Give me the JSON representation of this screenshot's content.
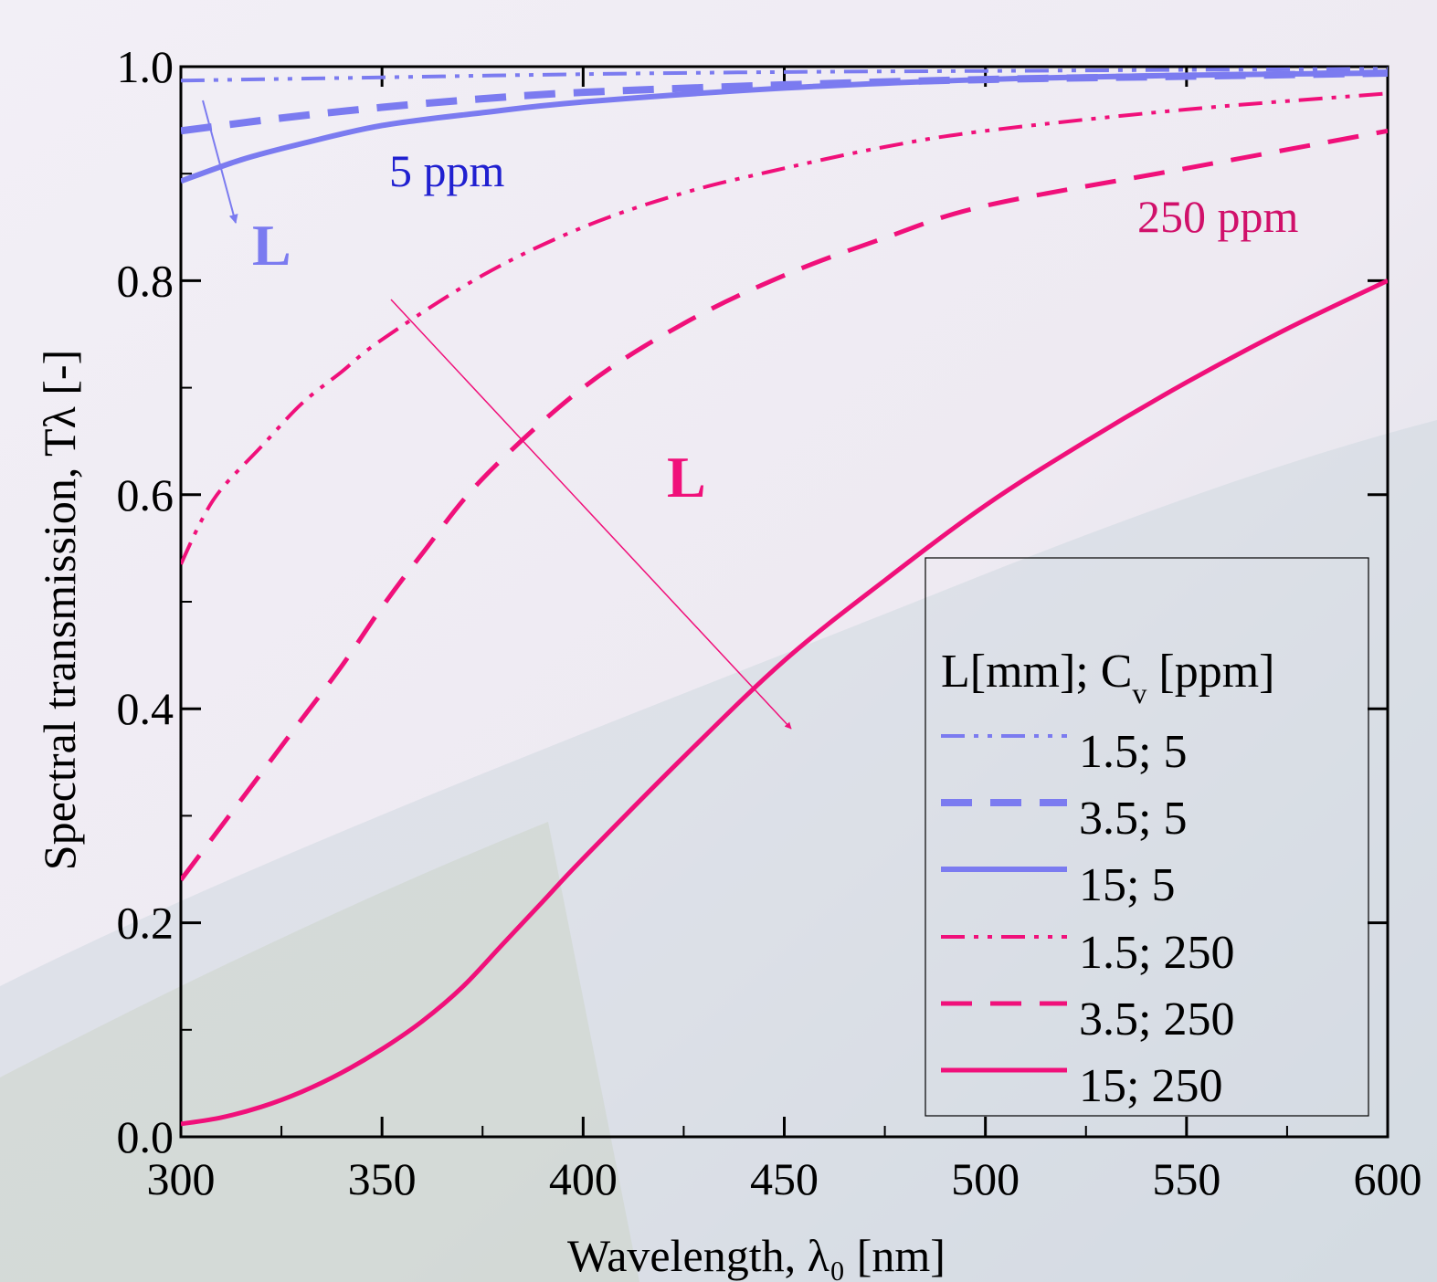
{
  "chart_data": {
    "type": "line",
    "xlabel": "Wavelength, λ₀ [nm]",
    "ylabel": "Spectral transmission, Tλ [-]",
    "xlim": [
      300,
      600
    ],
    "ylim": [
      0.0,
      1.0
    ],
    "x_ticks": [
      "300",
      "350",
      "400",
      "450",
      "500",
      "550",
      "600"
    ],
    "y_ticks": [
      "0.0",
      "0.2",
      "0.4",
      "0.6",
      "0.8",
      "1.0"
    ],
    "grid": false,
    "legend_position": "bottom-right",
    "legend_title": "L[mm]; C_v [ppm]",
    "series": [
      {
        "name": "1.5; 5",
        "color": "#7b7bf0",
        "dash": "dash-dot-dot",
        "x": [
          300,
          350,
          400,
          450,
          500,
          550,
          600
        ],
        "y": [
          0.987,
          0.99,
          0.993,
          0.995,
          0.996,
          0.997,
          0.998
        ]
      },
      {
        "name": "3.5; 5",
        "color": "#7b7bf0",
        "dash": "dash",
        "x": [
          300,
          325,
          350,
          375,
          400,
          450,
          500,
          550,
          600
        ],
        "y": [
          0.94,
          0.952,
          0.962,
          0.97,
          0.976,
          0.983,
          0.988,
          0.991,
          0.994
        ]
      },
      {
        "name": "15; 5",
        "color": "#7b7bf0",
        "dash": "solid",
        "x": [
          300,
          315,
          330,
          350,
          375,
          400,
          450,
          500,
          550,
          600
        ],
        "y": [
          0.893,
          0.913,
          0.928,
          0.945,
          0.957,
          0.967,
          0.98,
          0.988,
          0.992,
          0.994
        ]
      },
      {
        "name": "1.5; 250",
        "color": "#f0107a",
        "dash": "dash-dot-dot",
        "x": [
          300,
          305,
          310,
          320,
          330,
          340,
          350,
          375,
          400,
          425,
          450,
          475,
          500,
          550,
          600
        ],
        "y": [
          0.535,
          0.575,
          0.605,
          0.645,
          0.685,
          0.715,
          0.745,
          0.805,
          0.85,
          0.882,
          0.905,
          0.925,
          0.94,
          0.96,
          0.975
        ]
      },
      {
        "name": "3.5; 250",
        "color": "#f0107a",
        "dash": "dash",
        "x": [
          300,
          310,
          320,
          330,
          340,
          350,
          360,
          375,
          400,
          425,
          450,
          475,
          500,
          550,
          600
        ],
        "y": [
          0.24,
          0.29,
          0.34,
          0.39,
          0.44,
          0.495,
          0.545,
          0.615,
          0.7,
          0.76,
          0.805,
          0.84,
          0.87,
          0.905,
          0.94
        ]
      },
      {
        "name": "15; 250",
        "color": "#f0107a",
        "dash": "solid",
        "x": [
          300,
          310,
          320,
          330,
          340,
          350,
          360,
          370,
          380,
          390,
          400,
          425,
          450,
          475,
          500,
          525,
          550,
          575,
          600
        ],
        "y": [
          0.012,
          0.018,
          0.028,
          0.042,
          0.06,
          0.082,
          0.108,
          0.14,
          0.18,
          0.22,
          0.26,
          0.355,
          0.445,
          0.52,
          0.59,
          0.65,
          0.705,
          0.755,
          0.8
        ]
      }
    ],
    "annotations": [
      {
        "text": "5 ppm",
        "color": "#2020d0"
      },
      {
        "text": "250 ppm",
        "color": "#d0106a"
      },
      {
        "text": "L",
        "color": "#7b7bf0"
      },
      {
        "text": "L",
        "color": "#f0107a"
      }
    ]
  }
}
